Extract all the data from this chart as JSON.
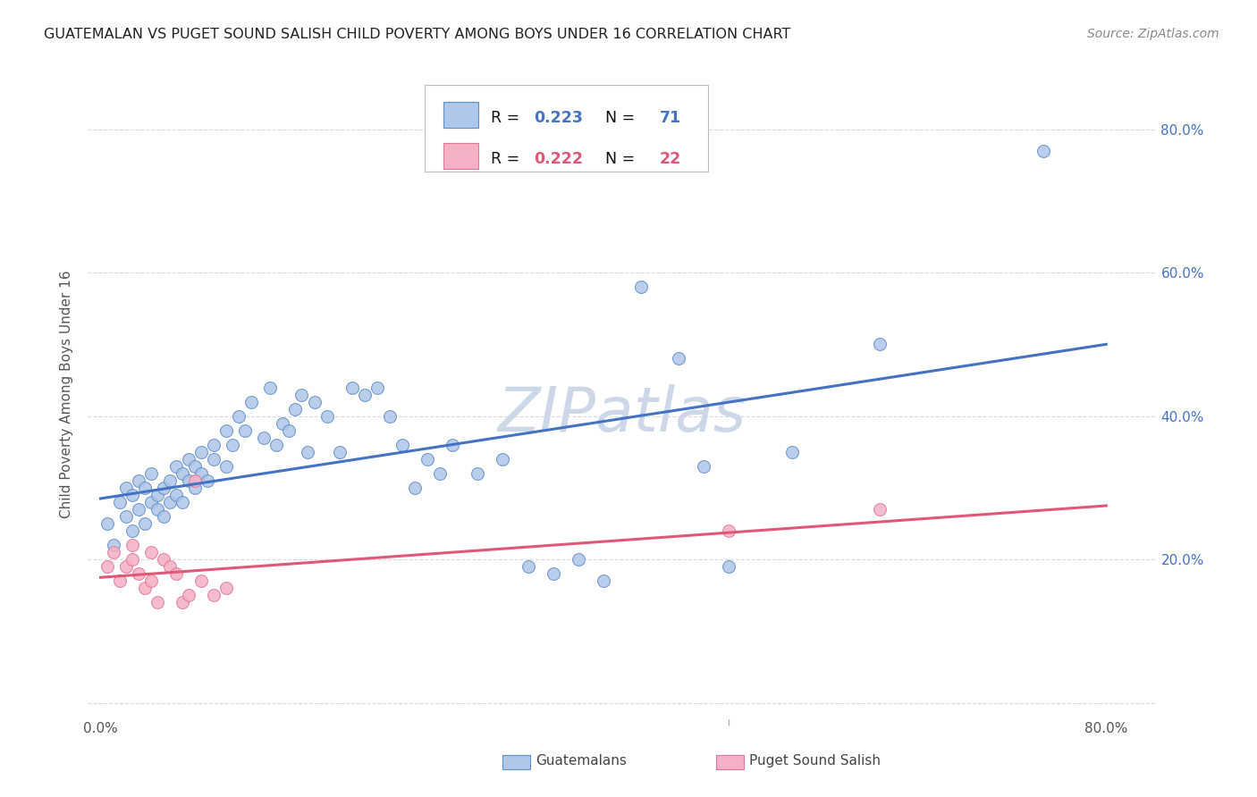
{
  "title": "GUATEMALAN VS PUGET SOUND SALISH CHILD POVERTY AMONG BOYS UNDER 16 CORRELATION CHART",
  "source": "Source: ZipAtlas.com",
  "ylabel": "Child Poverty Among Boys Under 16",
  "xlim": [
    -0.01,
    0.84
  ],
  "ylim": [
    -0.02,
    0.88
  ],
  "watermark": "ZIPatlas",
  "blue_scatter_x": [
    0.005,
    0.01,
    0.015,
    0.02,
    0.02,
    0.025,
    0.025,
    0.03,
    0.03,
    0.035,
    0.035,
    0.04,
    0.04,
    0.045,
    0.045,
    0.05,
    0.05,
    0.055,
    0.055,
    0.06,
    0.06,
    0.065,
    0.065,
    0.07,
    0.07,
    0.075,
    0.075,
    0.08,
    0.08,
    0.085,
    0.09,
    0.09,
    0.1,
    0.1,
    0.105,
    0.11,
    0.115,
    0.12,
    0.13,
    0.135,
    0.14,
    0.145,
    0.15,
    0.155,
    0.16,
    0.165,
    0.17,
    0.18,
    0.19,
    0.2,
    0.21,
    0.22,
    0.23,
    0.24,
    0.25,
    0.26,
    0.27,
    0.28,
    0.3,
    0.32,
    0.34,
    0.36,
    0.38,
    0.4,
    0.43,
    0.46,
    0.48,
    0.5,
    0.55,
    0.62,
    0.75
  ],
  "blue_scatter_y": [
    0.25,
    0.22,
    0.28,
    0.26,
    0.3,
    0.24,
    0.29,
    0.27,
    0.31,
    0.25,
    0.3,
    0.28,
    0.32,
    0.27,
    0.29,
    0.3,
    0.26,
    0.28,
    0.31,
    0.29,
    0.33,
    0.28,
    0.32,
    0.31,
    0.34,
    0.3,
    0.33,
    0.32,
    0.35,
    0.31,
    0.34,
    0.36,
    0.33,
    0.38,
    0.36,
    0.4,
    0.38,
    0.42,
    0.37,
    0.44,
    0.36,
    0.39,
    0.38,
    0.41,
    0.43,
    0.35,
    0.42,
    0.4,
    0.35,
    0.44,
    0.43,
    0.44,
    0.4,
    0.36,
    0.3,
    0.34,
    0.32,
    0.36,
    0.32,
    0.34,
    0.19,
    0.18,
    0.2,
    0.17,
    0.58,
    0.48,
    0.33,
    0.19,
    0.35,
    0.5,
    0.77
  ],
  "pink_scatter_x": [
    0.005,
    0.01,
    0.015,
    0.02,
    0.025,
    0.025,
    0.03,
    0.035,
    0.04,
    0.04,
    0.045,
    0.05,
    0.055,
    0.06,
    0.065,
    0.07,
    0.075,
    0.08,
    0.09,
    0.1,
    0.5,
    0.62
  ],
  "pink_scatter_y": [
    0.19,
    0.21,
    0.17,
    0.19,
    0.2,
    0.22,
    0.18,
    0.16,
    0.21,
    0.17,
    0.14,
    0.2,
    0.19,
    0.18,
    0.14,
    0.15,
    0.31,
    0.17,
    0.15,
    0.16,
    0.24,
    0.27
  ],
  "blue_line_start_x": 0.0,
  "blue_line_end_x": 0.8,
  "blue_line_start_y": 0.285,
  "blue_line_end_y": 0.5,
  "pink_line_start_x": 0.0,
  "pink_line_end_x": 0.8,
  "pink_line_start_y": 0.175,
  "pink_line_end_y": 0.275,
  "blue_color": "#4472c4",
  "pink_color": "#e05878",
  "blue_scatter_fill": "#aec6e8",
  "blue_scatter_edge": "#6090c8",
  "pink_scatter_fill": "#f4b0c4",
  "pink_scatter_edge": "#e07898",
  "background_color": "#ffffff",
  "grid_color": "#d0d0d0",
  "title_color": "#222222",
  "title_fontsize": 11.5,
  "source_fontsize": 10,
  "watermark_color": "#ccd8e8",
  "watermark_fontsize": 50,
  "legend_blue_r": "0.223",
  "legend_blue_n": "71",
  "legend_pink_r": "0.222",
  "legend_pink_n": "22"
}
